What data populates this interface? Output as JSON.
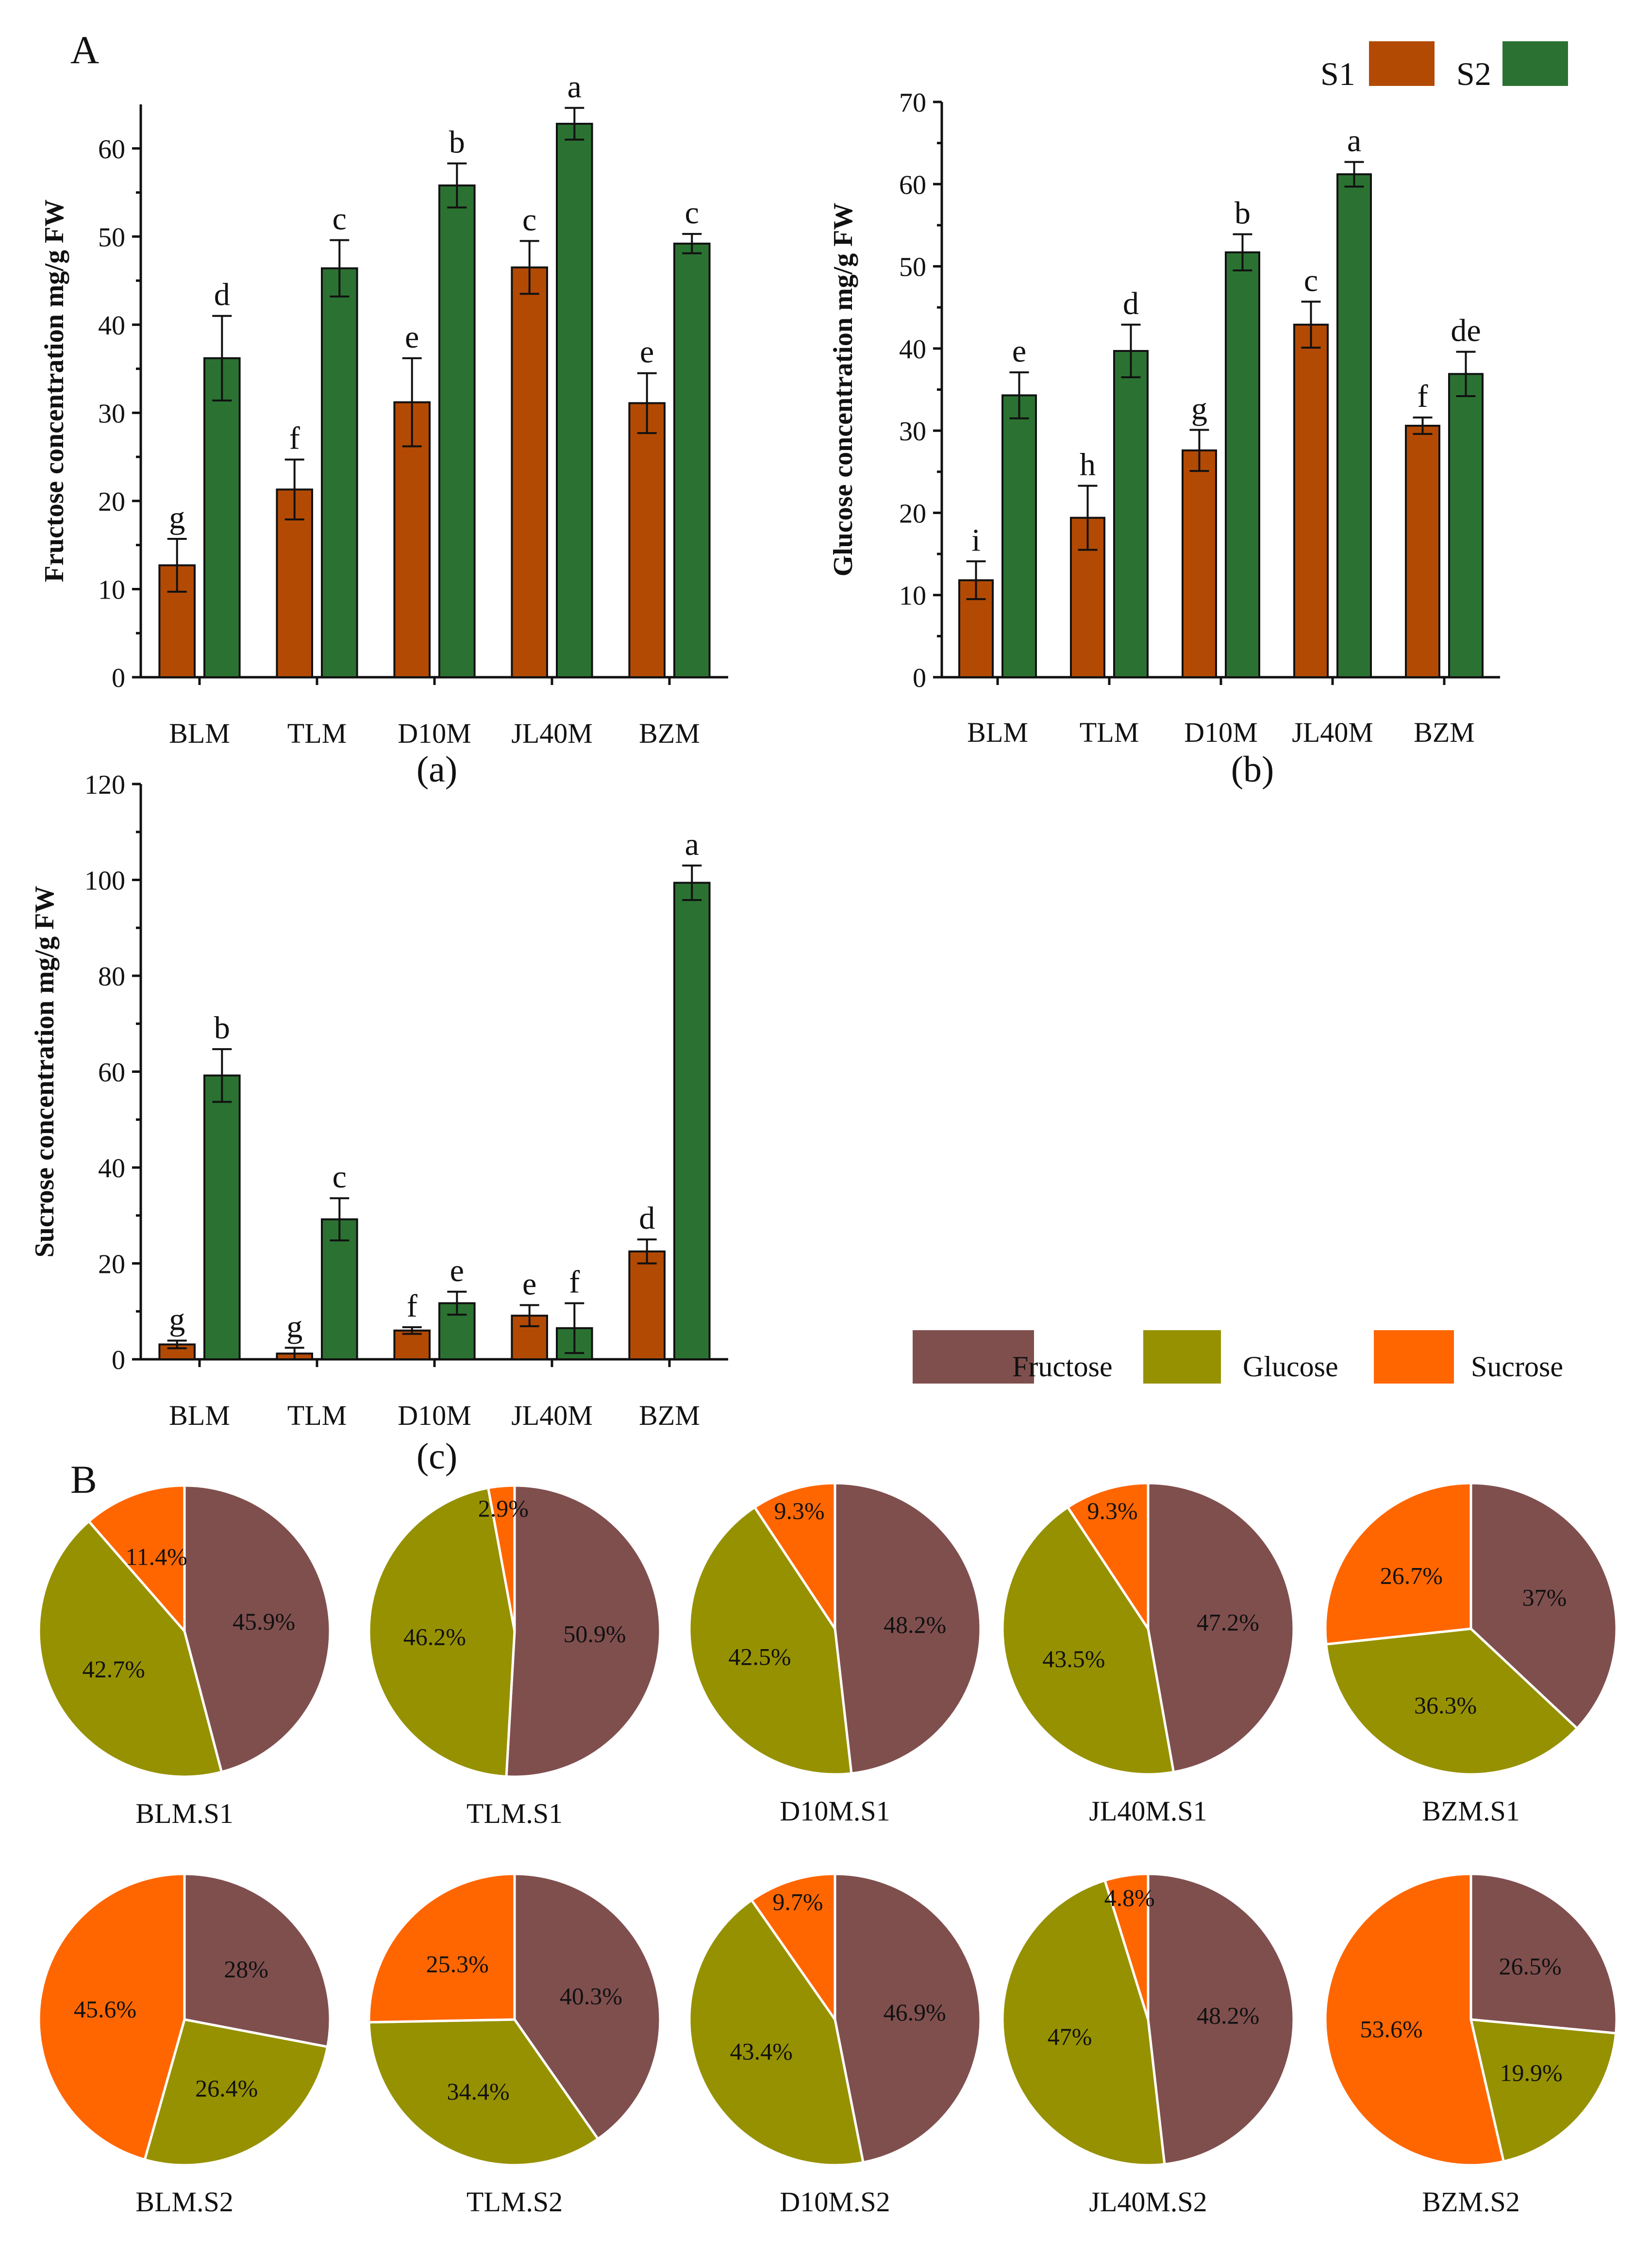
{
  "panel_labels": {
    "A": "A",
    "B": "B"
  },
  "colors": {
    "S1": "#B34A04",
    "S2": "#2B7232",
    "fructose": "#7F4F4E",
    "glucose": "#969100",
    "sucrose": "#FF6600"
  },
  "bar_legend": [
    {
      "label": "S1",
      "series": "S1"
    },
    {
      "label": "S2",
      "series": "S2"
    }
  ],
  "pie_legend": [
    {
      "label": "Fructose",
      "key": "fructose"
    },
    {
      "label": "Glucose",
      "key": "glucose"
    },
    {
      "label": "Sucrose",
      "key": "sucrose"
    }
  ],
  "chart_data": [
    {
      "id": "a",
      "type": "bar",
      "caption": "(a)",
      "ylabel": "Fructose concentration mg/g FW",
      "xlabel": "",
      "categories": [
        "BLM",
        "TLM",
        "D10M",
        "JL40M",
        "BZM"
      ],
      "ylim": [
        0,
        65
      ],
      "yticks": [
        0,
        10,
        20,
        30,
        40,
        50,
        60
      ],
      "series": [
        {
          "name": "S1",
          "values": [
            12.7,
            21.3,
            31.2,
            46.5,
            31.1
          ],
          "errors": [
            3.0,
            3.4,
            5.0,
            3.0,
            3.4
          ],
          "letters": [
            "g",
            "f",
            "e",
            "c",
            "e"
          ]
        },
        {
          "name": "S2",
          "values": [
            36.2,
            46.4,
            55.8,
            62.8,
            49.2
          ],
          "errors": [
            4.8,
            3.2,
            2.5,
            1.8,
            1.1
          ],
          "letters": [
            "d",
            "c",
            "b",
            "a",
            "c"
          ]
        }
      ]
    },
    {
      "id": "b",
      "type": "bar",
      "caption": "(b)",
      "ylabel": "Glucose concentration mg/g FW",
      "xlabel": "",
      "categories": [
        "BLM",
        "TLM",
        "D10M",
        "JL40M",
        "BZM"
      ],
      "ylim": [
        0,
        70
      ],
      "yticks": [
        0,
        10,
        20,
        30,
        40,
        50,
        60,
        70
      ],
      "series": [
        {
          "name": "S1",
          "values": [
            11.8,
            19.4,
            27.6,
            42.9,
            30.6
          ],
          "errors": [
            2.3,
            3.9,
            2.5,
            2.8,
            1.0
          ],
          "letters": [
            "i",
            "h",
            "g",
            "c",
            "f"
          ]
        },
        {
          "name": "S2",
          "values": [
            34.3,
            39.7,
            51.7,
            61.2,
            36.9
          ],
          "errors": [
            2.8,
            3.2,
            2.2,
            1.5,
            2.7
          ],
          "letters": [
            "e",
            "d",
            "b",
            "a",
            "de"
          ]
        }
      ]
    },
    {
      "id": "c",
      "type": "bar",
      "caption": "(c)",
      "ylabel": "Sucrose concentration mg/g FW",
      "xlabel": "",
      "categories": [
        "BLM",
        "TLM",
        "D10M",
        "JL40M",
        "BZM"
      ],
      "ylim": [
        0,
        120
      ],
      "yticks": [
        0,
        20,
        40,
        60,
        80,
        100,
        120
      ],
      "series": [
        {
          "name": "S1",
          "values": [
            3.1,
            1.2,
            6.0,
            9.1,
            22.5
          ],
          "errors": [
            0.8,
            1.2,
            0.7,
            2.2,
            2.5
          ],
          "letters": [
            "g",
            "g",
            "f",
            "e",
            "d"
          ]
        },
        {
          "name": "S2",
          "values": [
            59.2,
            29.2,
            11.7,
            6.5,
            99.4
          ],
          "errors": [
            5.5,
            4.4,
            2.4,
            5.2,
            3.6
          ],
          "letters": [
            "b",
            "c",
            "e",
            "f",
            "a"
          ]
        }
      ]
    },
    {
      "id": "pies",
      "type": "pie",
      "slice_order": [
        "Fructose",
        "Glucose",
        "Sucrose"
      ],
      "pies": [
        {
          "label": "BLM.S1",
          "values": [
            45.9,
            42.7,
            11.4
          ],
          "texts": [
            "45.9%",
            "42.7%",
            "11.4%"
          ]
        },
        {
          "label": "TLM.S1",
          "values": [
            50.9,
            46.2,
            2.9
          ],
          "texts": [
            "50.9%",
            "46.2%",
            "2.9%"
          ]
        },
        {
          "label": "D10M.S1",
          "values": [
            48.2,
            42.5,
            9.3
          ],
          "texts": [
            "48.2%",
            "42.5%",
            "9.3%"
          ]
        },
        {
          "label": "JL40M.S1",
          "values": [
            47.2,
            43.5,
            9.3
          ],
          "texts": [
            "47.2%",
            "43.5%",
            "9.3%"
          ]
        },
        {
          "label": "BZM.S1",
          "values": [
            37.0,
            36.3,
            26.7
          ],
          "texts": [
            "37%",
            "36.3%",
            "26.7%"
          ]
        },
        {
          "label": "BLM.S2",
          "values": [
            28.0,
            26.4,
            45.6
          ],
          "texts": [
            "28%",
            "26.4%",
            "45.6%"
          ]
        },
        {
          "label": "TLM.S2",
          "values": [
            40.3,
            34.4,
            25.3
          ],
          "texts": [
            "40.3%",
            "34.4%",
            "25.3%"
          ]
        },
        {
          "label": "D10M.S2",
          "values": [
            46.9,
            43.4,
            9.7
          ],
          "texts": [
            "46.9%",
            "43.4%",
            "9.7%"
          ]
        },
        {
          "label": "JL40M.S2",
          "values": [
            48.2,
            47.0,
            4.8
          ],
          "texts": [
            "48.2%",
            "47%",
            "4.8%"
          ]
        },
        {
          "label": "BZM.S2",
          "values": [
            26.5,
            19.9,
            53.6
          ],
          "texts": [
            "26.5%",
            "19.9%",
            "53.6%"
          ]
        }
      ]
    }
  ]
}
